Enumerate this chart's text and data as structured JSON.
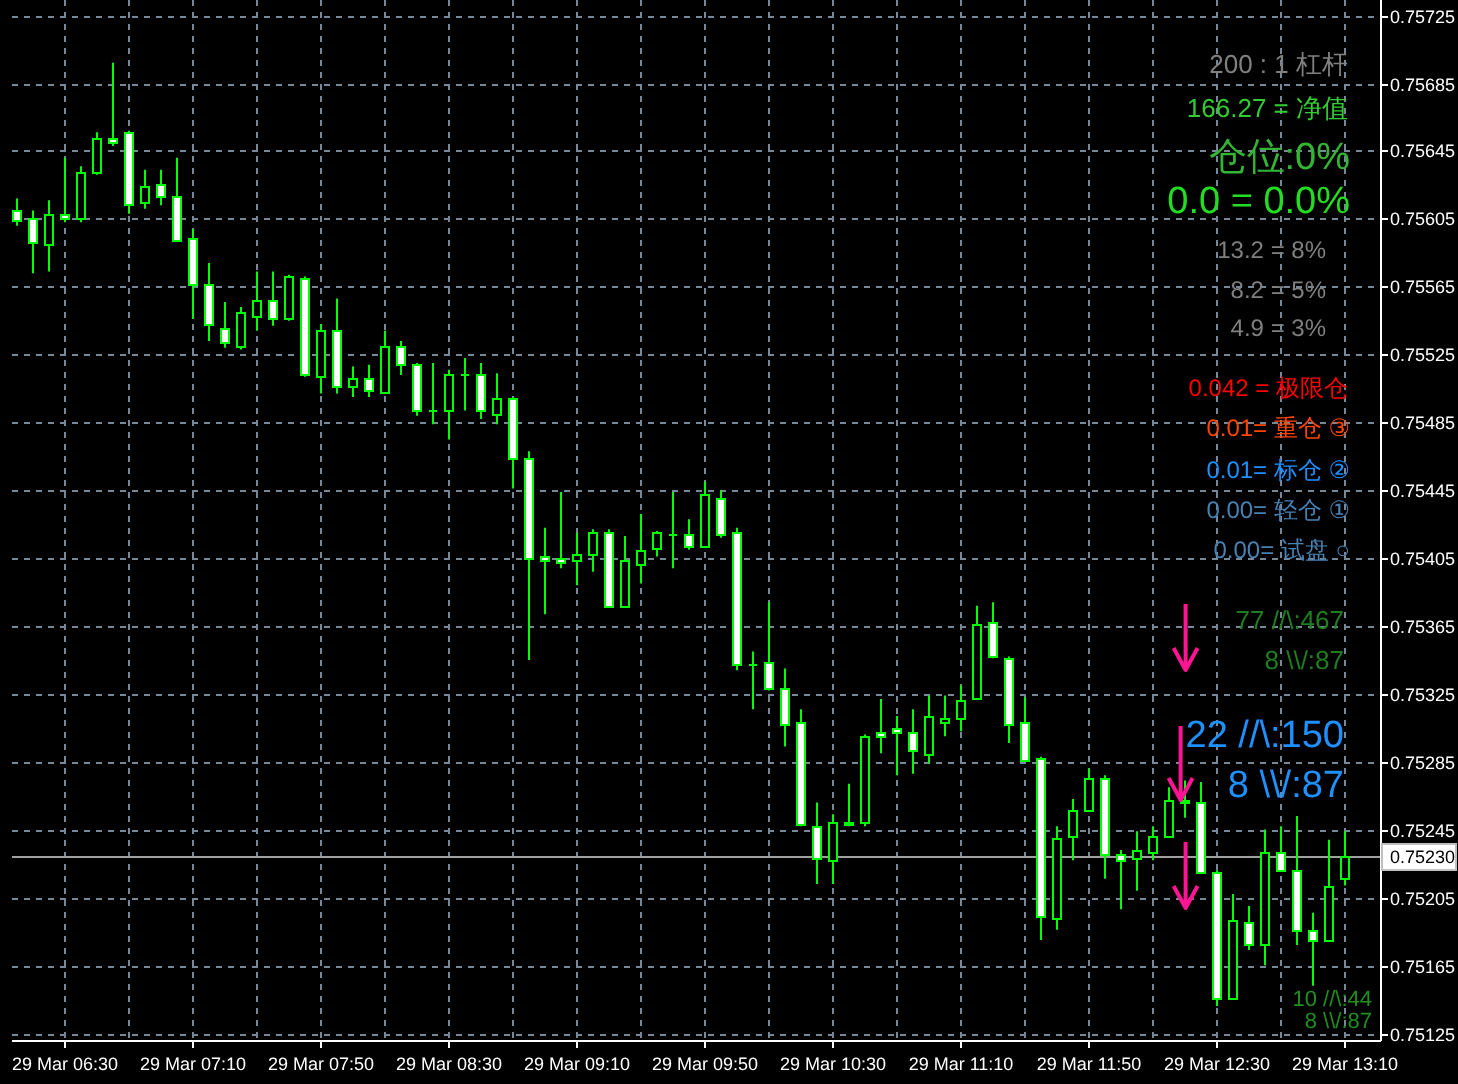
{
  "chart_data": {
    "type": "candlestick",
    "categories": [
      null,
      null,
      null,
      "29 Mar 06:30",
      null,
      null,
      null,
      null,
      null,
      null,
      null,
      "29 Mar 07:10",
      null,
      null,
      null,
      null,
      null,
      null,
      null,
      "29 Mar 07:50",
      null,
      null,
      null,
      null,
      null,
      null,
      null,
      "29 Mar 08:30",
      null,
      null,
      null,
      null,
      null,
      null,
      null,
      "29 Mar 09:10",
      null,
      null,
      null,
      null,
      null,
      null,
      null,
      "29 Mar 09:50",
      null,
      null,
      null,
      null,
      null,
      null,
      null,
      "29 Mar 10:30",
      null,
      null,
      null,
      null,
      null,
      null,
      null,
      "29 Mar 11:10",
      null,
      null,
      null,
      null,
      null,
      null,
      null,
      "29 Mar 11:50",
      null,
      null,
      null,
      null,
      null,
      null,
      null,
      "29 Mar 12:30",
      null,
      null,
      null,
      null,
      null,
      null,
      null,
      "29 Mar 13:10"
    ],
    "series": [
      {
        "color": "#00ff00",
        "ohlc": [
          [
            0.7561,
            0.75617,
            0.75601,
            0.75604
          ],
          [
            0.75606,
            0.7561,
            0.75573,
            0.75591
          ],
          [
            0.7559,
            0.75616,
            0.75574,
            0.75608
          ],
          [
            0.75608,
            0.75641,
            0.75603,
            0.75605
          ],
          [
            0.75606,
            0.75636,
            0.75603,
            0.75633
          ],
          [
            0.75633,
            0.75656,
            0.75631,
            0.75653
          ],
          [
            0.75653,
            0.75697,
            0.75648,
            0.7565
          ],
          [
            0.75656,
            0.75657,
            0.75608,
            0.75614
          ],
          [
            0.75615,
            0.75634,
            0.75611,
            0.75624
          ],
          [
            0.75625,
            0.75634,
            0.75613,
            0.75619
          ],
          [
            0.75619,
            0.75641,
            0.75592,
            0.75593
          ],
          [
            0.75594,
            0.75599,
            0.75546,
            0.75567
          ],
          [
            0.75567,
            0.75579,
            0.75533,
            0.75543
          ],
          [
            0.75541,
            0.75556,
            0.75529,
            0.75532
          ],
          [
            0.7553,
            0.75553,
            0.75528,
            0.7555
          ],
          [
            0.75548,
            0.75574,
            0.75539,
            0.75557
          ],
          [
            0.75557,
            0.75574,
            0.75542,
            0.75547
          ],
          [
            0.75547,
            0.75572,
            0.75545,
            0.75571
          ],
          [
            0.7557,
            0.75571,
            0.75512,
            0.75513
          ],
          [
            0.75512,
            0.75543,
            0.75502,
            0.7554
          ],
          [
            0.7554,
            0.75558,
            0.75502,
            0.75507
          ],
          [
            0.75506,
            0.75518,
            0.755,
            0.75511
          ],
          [
            0.75511,
            0.75519,
            0.755,
            0.75504
          ],
          [
            0.75503,
            0.75539,
            0.75502,
            0.7553
          ],
          [
            0.7553,
            0.75533,
            0.75513,
            0.75519
          ],
          [
            0.75519,
            0.7552,
            0.75489,
            0.75492
          ],
          [
            0.75492,
            0.7552,
            0.75484,
            0.75492
          ],
          [
            0.75492,
            0.75516,
            0.75475,
            0.75513
          ],
          [
            0.75513,
            0.75523,
            0.75492,
            0.75513
          ],
          [
            0.75514,
            0.7552,
            0.75487,
            0.75492
          ],
          [
            0.7549,
            0.75514,
            0.75484,
            0.75499
          ],
          [
            0.75499,
            0.755,
            0.75446,
            0.75464
          ],
          [
            0.75464,
            0.75468,
            0.75345,
            0.75405
          ],
          [
            0.75406,
            0.75423,
            0.75372,
            0.75404
          ],
          [
            0.75405,
            0.75444,
            0.75399,
            0.75403
          ],
          [
            0.75404,
            0.7542,
            0.75389,
            0.75408
          ],
          [
            0.75408,
            0.75422,
            0.75397,
            0.75421
          ],
          [
            0.75421,
            0.75422,
            0.75376,
            0.75377
          ],
          [
            0.75377,
            0.75418,
            0.75376,
            0.75404
          ],
          [
            0.75401,
            0.75431,
            0.7539,
            0.7541
          ],
          [
            0.75411,
            0.75421,
            0.75406,
            0.7542
          ],
          [
            0.75419,
            0.75444,
            0.75399,
            0.75419
          ],
          [
            0.75419,
            0.75428,
            0.7541,
            0.75412
          ],
          [
            0.75412,
            0.7545,
            0.75411,
            0.75443
          ],
          [
            0.75441,
            0.75445,
            0.75417,
            0.75419
          ],
          [
            0.7542,
            0.75423,
            0.75339,
            0.75343
          ],
          [
            0.75343,
            0.7535,
            0.75316,
            0.75343
          ],
          [
            0.75344,
            0.75379,
            0.75327,
            0.75328
          ],
          [
            0.75328,
            0.7534,
            0.75294,
            0.75307
          ],
          [
            0.75308,
            0.75316,
            0.75247,
            0.75248
          ],
          [
            0.75247,
            0.75261,
            0.75213,
            0.75228
          ],
          [
            0.75227,
            0.75254,
            0.75213,
            0.7525
          ],
          [
            0.75249,
            0.75272,
            0.75247,
            0.75248
          ],
          [
            0.7525,
            0.75301,
            0.75247,
            0.753
          ],
          [
            0.75303,
            0.75322,
            0.7529,
            0.753
          ],
          [
            0.75305,
            0.75312,
            0.75277,
            0.75303
          ],
          [
            0.75303,
            0.75316,
            0.75278,
            0.75292
          ],
          [
            0.7529,
            0.75324,
            0.75284,
            0.75312
          ],
          [
            0.75309,
            0.75324,
            0.753,
            0.75311
          ],
          [
            0.75311,
            0.7533,
            0.75303,
            0.75321
          ],
          [
            0.75323,
            0.75377,
            0.75322,
            0.75366
          ],
          [
            0.75367,
            0.75379,
            0.75346,
            0.75347
          ],
          [
            0.75346,
            0.75347,
            0.75296,
            0.75307
          ],
          [
            0.75308,
            0.75323,
            0.75285,
            0.75286
          ],
          [
            0.75287,
            0.75288,
            0.7518,
            0.75194
          ],
          [
            0.75193,
            0.75247,
            0.75186,
            0.7524
          ],
          [
            0.75241,
            0.75263,
            0.75227,
            0.75257
          ],
          [
            0.75257,
            0.75281,
            0.75256,
            0.75276
          ],
          [
            0.75276,
            0.75277,
            0.75216,
            0.75231
          ],
          [
            0.75231,
            0.75233,
            0.75198,
            0.75227
          ],
          [
            0.75228,
            0.75244,
            0.75209,
            0.75233
          ],
          [
            0.75232,
            0.75247,
            0.75227,
            0.75241
          ],
          [
            0.75241,
            0.7527,
            0.7524,
            0.75263
          ],
          [
            0.75261,
            0.75274,
            0.75252,
            0.75263
          ],
          [
            0.75261,
            0.75273,
            0.75219,
            0.7522
          ],
          [
            0.7522,
            0.75221,
            0.75141,
            0.75146
          ],
          [
            0.75146,
            0.75207,
            0.75145,
            0.75192
          ],
          [
            0.75191,
            0.752,
            0.75174,
            0.75178
          ],
          [
            0.75177,
            0.75245,
            0.75165,
            0.75232
          ],
          [
            0.75232,
            0.75247,
            0.7522,
            0.75221
          ],
          [
            0.75221,
            0.75253,
            0.75177,
            0.75186
          ],
          [
            0.75186,
            0.75196,
            0.75153,
            0.7518
          ],
          [
            0.7518,
            0.75239,
            0.75179,
            0.75212
          ],
          [
            0.75217,
            0.75244,
            0.75212,
            0.7523
          ]
        ]
      }
    ],
    "ylim": [
      0.75121,
      0.75734
    ],
    "yticks": [
      0.75725,
      0.75685,
      0.75645,
      0.75605,
      0.75565,
      0.75525,
      0.75485,
      0.75445,
      0.75405,
      0.75365,
      0.75325,
      0.75285,
      0.75245,
      0.75205,
      0.75165,
      0.75125
    ],
    "grid": true,
    "ref_lines": [
      {
        "axis": "y",
        "value": 0.7523,
        "label": "0.75230",
        "color": "#a0a0a0"
      }
    ],
    "annotations": [
      "200 : 1 杠杆",
      "166.27 = 净值",
      "仓位:0%",
      "0.0 = 0.0%",
      "13.2 = 8%",
      "8.2 = 5%",
      "4.9 = 3%",
      "0.042 = 极限仓",
      "0.01= 重仓 ③",
      "0.01= 标仓 ②",
      "0.00= 轻仓 ①",
      "0.00= 试盘 ○",
      "77 //\\:467",
      "8 \\\\/:87",
      "22 //\\:150",
      "8 \\\\/:87",
      "10 //\\:44",
      "8 \\\\/:87"
    ]
  }
}
